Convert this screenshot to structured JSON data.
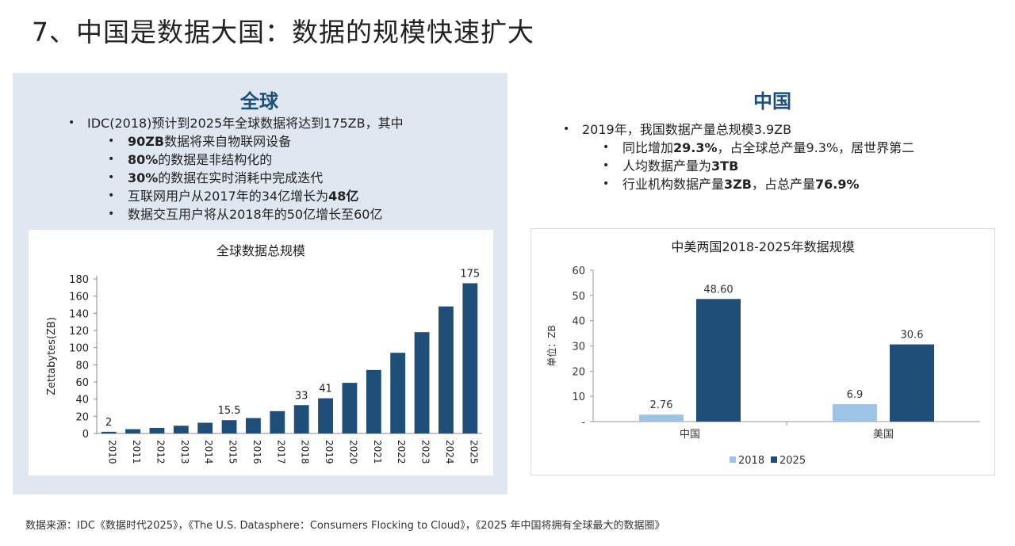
{
  "slide": {
    "title": "7、中国是数据大国：数据的规模快速扩大",
    "footnote": "数据来源：IDC《数据时代2025》，《The U.S. Datasphere：Consumers Flocking to Cloud》，《2025 年中国将拥有全球最大的数据圈》"
  },
  "global_panel": {
    "heading": "全球",
    "main_point": "IDC(2018)预计到2025年全球数据将达到175ZB，其中",
    "sub_points": [
      {
        "bold": "90ZB",
        "text": "数据将来自物联网设备",
        "suffix": ""
      },
      {
        "bold": "80%",
        "text": "的数据是非结构化的",
        "suffix": ""
      },
      {
        "bold": "30%",
        "text": "的数据在实时消耗中完成迭代",
        "suffix": ""
      },
      {
        "bold": "",
        "text": "互联网用户从2017年的34亿增长为",
        "suffix": "48亿"
      },
      {
        "bold": "",
        "text": "数据交互用户将从2018年的50亿增长至60亿",
        "suffix": ""
      }
    ]
  },
  "china_panel": {
    "heading": "中国",
    "main_point": "2019年，我国数据产量总规模3.9ZB",
    "sub_points": [
      {
        "pre": "同比增加",
        "bold": "29.3%",
        "post": "，占全球总产量9.3%，居世界第二",
        "bold2": ""
      },
      {
        "pre": "人均数据产量为",
        "bold": "3TB",
        "post": "",
        "bold2": ""
      },
      {
        "pre": "行业机构数据产量",
        "bold": "3ZB",
        "post": "，占总产量",
        "bold2": "76.9%"
      }
    ]
  },
  "chart_data": [
    {
      "type": "bar",
      "title": "全球数据总规模",
      "ylabel": "Zettabytes(ZB)",
      "xlabel": "",
      "ylim": [
        0,
        180
      ],
      "yticks": [
        0,
        20,
        40,
        60,
        80,
        100,
        120,
        140,
        160,
        180
      ],
      "categories": [
        "2010",
        "2011",
        "2012",
        "2013",
        "2014",
        "2015",
        "2016",
        "2017",
        "2018",
        "2019",
        "2020",
        "2021",
        "2022",
        "2023",
        "2024",
        "2025"
      ],
      "values": [
        2,
        5,
        6.5,
        9,
        12.5,
        15.5,
        18,
        26,
        33,
        41,
        59,
        74,
        94,
        118,
        148,
        175
      ],
      "data_labels": {
        "0": "2",
        "5": "15.5",
        "8": "33",
        "9": "41",
        "15": "175"
      },
      "bar_color": "#1f4e79",
      "grid": false
    },
    {
      "type": "bar",
      "title": "中美两国2018-2025年数据规模",
      "ylabel": "单位：ZB",
      "xlabel": "",
      "ylim": [
        0,
        60
      ],
      "yticks": [
        0,
        10,
        20,
        30,
        40,
        50,
        60
      ],
      "ytick_labels": [
        "-",
        "10",
        "20",
        "30",
        "40",
        "50",
        "60"
      ],
      "categories": [
        "中国",
        "美国"
      ],
      "series": [
        {
          "name": "2018",
          "values": [
            2.76,
            6.9
          ],
          "labels": [
            "2.76",
            "6.9"
          ],
          "color": "#9dc3e6"
        },
        {
          "name": "2025",
          "values": [
            48.6,
            30.6
          ],
          "labels": [
            "48.60",
            "30.6"
          ],
          "color": "#1f4e79"
        }
      ],
      "legend": "bottom",
      "grid": false
    }
  ]
}
